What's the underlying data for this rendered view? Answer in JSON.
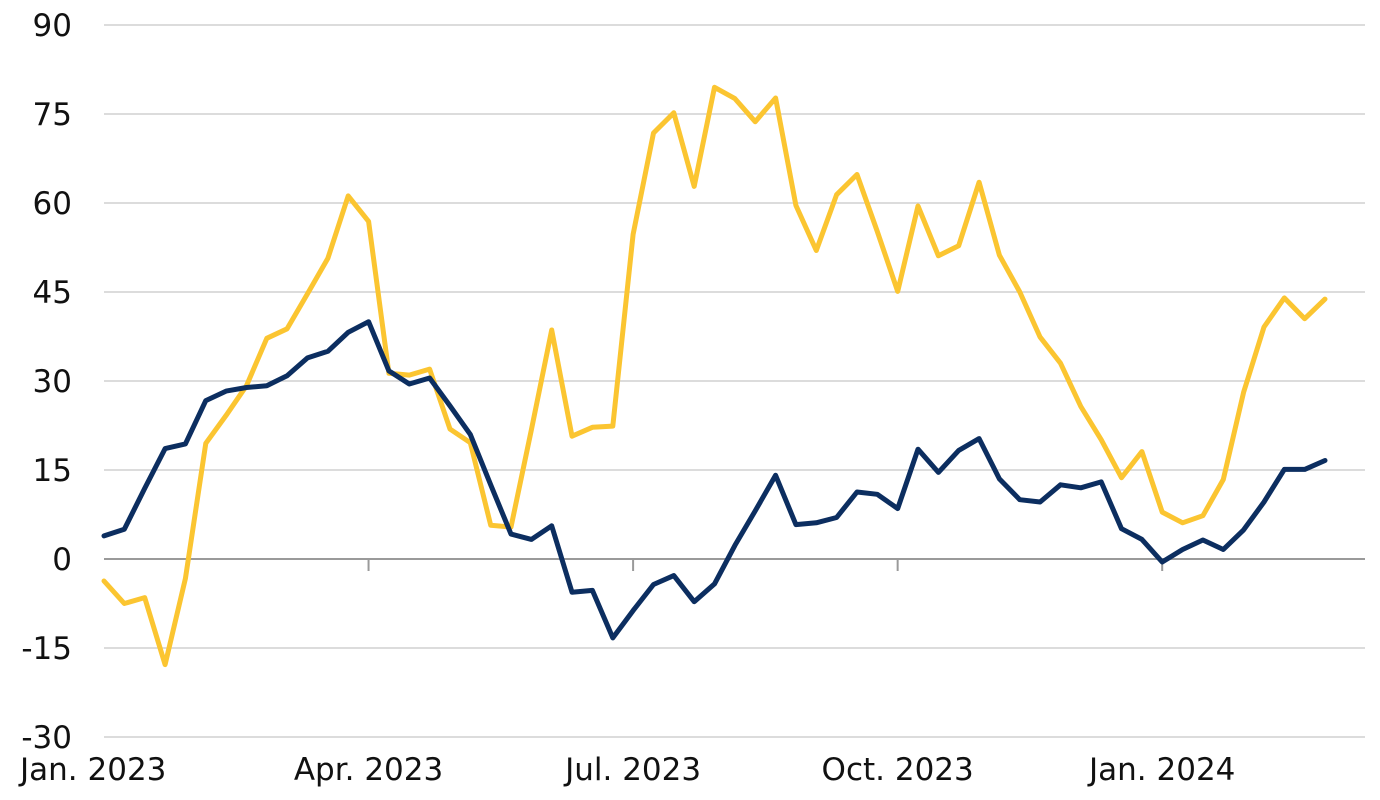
{
  "chart_data": {
    "type": "line",
    "title": "",
    "xlabel": "",
    "ylabel": "",
    "ylim": [
      -30,
      90
    ],
    "yticks": [
      -30,
      -15,
      0,
      15,
      30,
      45,
      60,
      75,
      90
    ],
    "xticks": [
      "Jan. 2023",
      "Apr. 2023",
      "Jul. 2023",
      "Oct. 2023",
      "Jan. 2024"
    ],
    "x_index_range": [
      0,
      68
    ],
    "xtick_positions": [
      0,
      13,
      26,
      39,
      52
    ],
    "grid": true,
    "legend": "none",
    "series": [
      {
        "color": "#fbc531",
        "values": [
          -3.7,
          -7.5,
          -6.5,
          -17.8,
          -3.3,
          19.5,
          24.2,
          29.2,
          37.2,
          38.8,
          44.7,
          50.7,
          61.2,
          56.9,
          31.3,
          31.0,
          32.0,
          21.9,
          19.6,
          5.7,
          5.4,
          21.8,
          38.6,
          20.7,
          22.2,
          22.4,
          54.7,
          71.8,
          75.2,
          62.8,
          79.5,
          77.6,
          73.7,
          77.7,
          59.6,
          52.0,
          61.4,
          64.8,
          55.2,
          45.1,
          59.5,
          51.1,
          52.8,
          63.5,
          51.2,
          45.0,
          37.4,
          33.0,
          25.7,
          20.1,
          13.7,
          18.1,
          7.9,
          6.1,
          7.3,
          13.4,
          28.1,
          39.1,
          44.0,
          40.5,
          43.8
        ]
      },
      {
        "color": "#0c2e60",
        "values": [
          3.9,
          5.0,
          11.9,
          18.6,
          19.4,
          26.7,
          28.3,
          28.9,
          29.2,
          30.9,
          33.9,
          35.0,
          38.2,
          40.0,
          31.7,
          29.5,
          30.5,
          25.8,
          21.0,
          12.5,
          4.2,
          3.3,
          5.6,
          -5.6,
          -5.3,
          -13.3,
          -8.7,
          -4.3,
          -2.8,
          -7.2,
          -4.2,
          2.3,
          8.1,
          14.1,
          5.8,
          6.1,
          7.0,
          11.3,
          10.9,
          8.5,
          18.5,
          14.6,
          18.3,
          20.3,
          13.5,
          10.0,
          9.6,
          12.5,
          12.0,
          13.0,
          5.1,
          3.3,
          -0.5,
          1.6,
          3.2,
          1.6,
          4.9,
          9.6,
          15.1,
          15.1,
          16.6
        ]
      }
    ]
  }
}
